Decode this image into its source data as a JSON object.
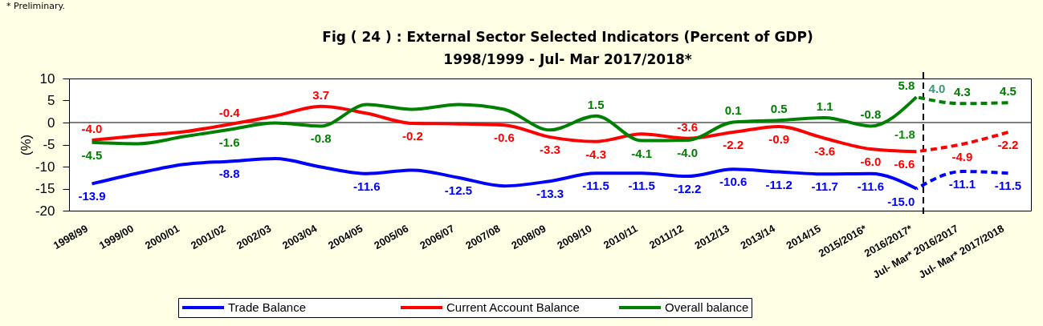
{
  "chart_data": {
    "type": "line",
    "title": "Fig ( 24 ) : External Sector Selected Indicators (Percent of GDP)",
    "subtitle": "1998/1999  -  Jul- Mar 2017/2018*",
    "ylabel": "(%)",
    "categories": [
      "1998/99",
      "1999/00",
      "2000/01",
      "2001/02",
      "2002/03",
      "2003/04",
      "2004/05",
      "2005/06",
      "2006/07",
      "2007/08",
      "2008/09",
      "2009/10",
      "2010/11",
      "2011/12",
      "2012/13",
      "2013/14",
      "2014/15",
      "2015/2016*",
      "2016/2017*",
      "Jul- Mar* 2016/2017",
      "Jul- Mar* 2017/2018"
    ],
    "series": [
      {
        "name": "Trade Balance",
        "color": "#0000ff",
        "values": [
          -13.9,
          -11.5,
          -9.5,
          -8.8,
          -8.2,
          -10.1,
          -11.6,
          -10.8,
          -12.5,
          -14.4,
          -13.3,
          -11.5,
          -11.5,
          -12.2,
          -10.6,
          -11.2,
          -11.7,
          -11.6,
          -15.0,
          null,
          null
        ],
        "value_labels": [
          "-13.9",
          null,
          null,
          "-8.8",
          null,
          null,
          "-11.6",
          null,
          "-12.5",
          null,
          "-13.3",
          "-11.5",
          "-11.5",
          "-12.2",
          "-10.6",
          "-11.2",
          "-11.7",
          "-11.6",
          "-15.0",
          null,
          null
        ]
      },
      {
        "name": "Current Account Balance",
        "color": "#ff0000",
        "values": [
          -4.0,
          -3.0,
          -2.1,
          -0.4,
          1.5,
          3.7,
          2.1,
          -0.2,
          -0.3,
          -0.6,
          -3.3,
          -4.3,
          -2.6,
          -3.6,
          -2.2,
          -0.9,
          -3.6,
          -6.0,
          -6.6,
          null,
          null
        ],
        "value_labels": [
          "-4.0",
          null,
          null,
          "-0.4",
          null,
          "3.7",
          null,
          "-0.2",
          null,
          "-0.6",
          "-3.3",
          "-4.3",
          null,
          "-3.6",
          "-2.2",
          "-0.9",
          "-3.6",
          "-6.0",
          "-6.6",
          null,
          null
        ]
      },
      {
        "name": "Overall balance",
        "color": "#008000",
        "values": [
          -4.5,
          -4.8,
          -3.2,
          -1.6,
          -0.1,
          -0.8,
          4.1,
          3.0,
          4.1,
          3.0,
          -1.7,
          1.5,
          -4.1,
          -4.0,
          0.1,
          0.5,
          1.1,
          -0.8,
          5.8,
          null,
          null
        ],
        "value_labels": [
          "-4.5",
          null,
          null,
          "-1.6",
          null,
          "-0.8",
          null,
          null,
          null,
          null,
          null,
          "1.5",
          "-4.1",
          "-4.0",
          "0.1",
          "0.5",
          "1.1",
          "-0.8",
          "5.8",
          null,
          null
        ]
      },
      {
        "color": "#0000ff",
        "line_style": "dashed",
        "values": [
          null,
          null,
          null,
          null,
          null,
          null,
          null,
          null,
          null,
          null,
          null,
          null,
          null,
          null,
          null,
          null,
          null,
          null,
          -15.0,
          -11.1,
          -11.5
        ],
        "value_labels": [
          null,
          null,
          null,
          null,
          null,
          null,
          null,
          null,
          null,
          null,
          null,
          null,
          null,
          null,
          null,
          null,
          null,
          null,
          null,
          "-11.1",
          "-11.5"
        ]
      },
      {
        "color": "#ff0000",
        "line_style": "dashed",
        "values": [
          null,
          null,
          null,
          null,
          null,
          null,
          null,
          null,
          null,
          null,
          null,
          null,
          null,
          null,
          null,
          null,
          null,
          null,
          -6.6,
          -4.9,
          -2.2
        ],
        "value_labels": [
          null,
          null,
          null,
          null,
          null,
          null,
          null,
          null,
          null,
          null,
          null,
          null,
          null,
          null,
          null,
          null,
          null,
          null,
          null,
          "-4.9",
          "-2.2"
        ]
      },
      {
        "color": "#008000",
        "line_style": "dashed",
        "values": [
          null,
          null,
          null,
          null,
          null,
          null,
          null,
          null,
          null,
          null,
          null,
          null,
          null,
          null,
          null,
          null,
          null,
          null,
          5.8,
          4.3,
          4.5
        ],
        "value_labels": [
          null,
          null,
          null,
          null,
          null,
          null,
          null,
          null,
          null,
          null,
          null,
          null,
          null,
          null,
          null,
          null,
          null,
          null,
          null,
          "4.3",
          "4.5"
        ]
      }
    ],
    "ylim": [
      -20,
      10
    ],
    "yticks": [
      -20,
      -15,
      -10,
      -5,
      0,
      5,
      10
    ],
    "grid": false,
    "legend": "bottom",
    "ref_lines": [
      {
        "axis": "y",
        "value": 0,
        "color": "#000000"
      },
      {
        "axis": "x",
        "value": "2016/2017*",
        "color": "#000000",
        "line_style": "dashed"
      }
    ],
    "annotations": [
      "* Preliminary.",
      "-1.8",
      "4.0"
    ]
  }
}
